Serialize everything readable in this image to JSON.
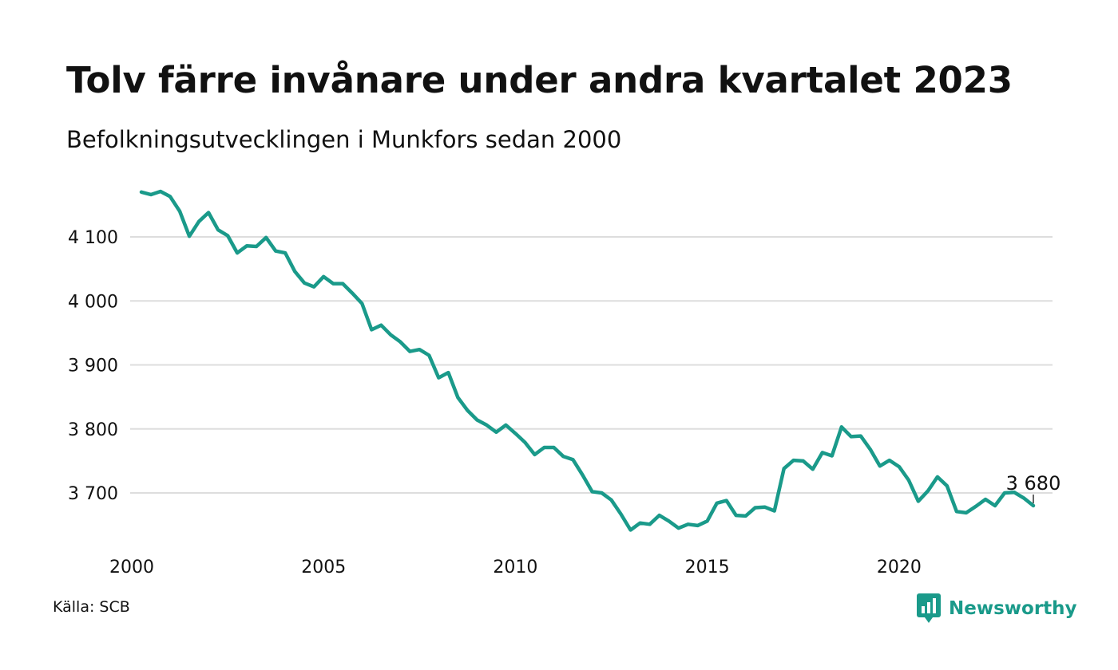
{
  "title": "Tolv färre invånare under andra kvartalet 2023",
  "subtitle": "Befolkningsutvecklingen i Munkfors sedan 2000",
  "source": "Källa: SCB",
  "brand": {
    "name": "Newsworthy",
    "icon": "newsworthy-logo-icon",
    "color": "#1a9a8a"
  },
  "colors": {
    "line": "#1a9a8a",
    "grid": "#dddddd",
    "text": "#111111"
  },
  "chart_data": {
    "type": "line",
    "title": "Tolv färre invånare under andra kvartalet 2023",
    "subtitle": "Befolkningsutvecklingen i Munkfors sedan 2000",
    "xlabel": "",
    "ylabel": "",
    "x_ticks": [
      2000,
      2005,
      2010,
      2015,
      2020
    ],
    "x_tick_labels": [
      "2000",
      "2005",
      "2010",
      "2015",
      "2020"
    ],
    "y_ticks": [
      3700,
      3800,
      3900,
      4000,
      4100
    ],
    "y_tick_labels": [
      "3 700",
      "3 800",
      "3 900",
      "4 000",
      "4 100"
    ],
    "xlim": [
      2000,
      2023.25
    ],
    "ylim": [
      3640,
      4175
    ],
    "grid": true,
    "legend": "none",
    "last_value_label": "3 680",
    "x": [
      2000.25,
      2000.5,
      2000.75,
      2001,
      2001.25,
      2001.5,
      2001.75,
      2002,
      2002.25,
      2002.5,
      2002.75,
      2003,
      2003.25,
      2003.5,
      2003.75,
      2004,
      2004.25,
      2004.5,
      2004.75,
      2005,
      2005.25,
      2005.5,
      2005.75,
      2006,
      2006.25,
      2006.5,
      2006.75,
      2007,
      2007.25,
      2007.5,
      2007.75,
      2008,
      2008.25,
      2008.5,
      2008.75,
      2009,
      2009.25,
      2009.5,
      2009.75,
      2010,
      2010.25,
      2010.5,
      2010.75,
      2011,
      2011.25,
      2011.5,
      2011.75,
      2012,
      2012.25,
      2012.5,
      2012.75,
      2013,
      2013.25,
      2013.5,
      2013.75,
      2014,
      2014.25,
      2014.5,
      2014.75,
      2015,
      2015.25,
      2015.5,
      2015.75,
      2016,
      2016.25,
      2016.5,
      2016.75,
      2017,
      2017.25,
      2017.5,
      2017.75,
      2018,
      2018.25,
      2018.5,
      2018.75,
      2019,
      2019.25,
      2019.5,
      2019.75,
      2020,
      2020.25,
      2020.5,
      2020.75,
      2021,
      2021.25,
      2021.5,
      2021.75,
      2022,
      2022.25,
      2022.5,
      2022.75,
      2023,
      2023.25,
      2023.5
    ],
    "series": [
      {
        "values": [
          4170,
          4166,
          4171,
          4163,
          4140,
          4101,
          4124,
          4138,
          4111,
          4102,
          4075,
          4086,
          4085,
          4099,
          4078,
          4075,
          4046,
          4028,
          4022,
          4038,
          4027,
          4027,
          4012,
          3996,
          3955,
          3962,
          3947,
          3936,
          3921,
          3924,
          3915,
          3880,
          3888,
          3849,
          3829,
          3814,
          3806,
          3795,
          3806,
          3793,
          3779,
          3760,
          3771,
          3771,
          3757,
          3752,
          3728,
          3702,
          3700,
          3689,
          3667,
          3642,
          3653,
          3651,
          3665,
          3656,
          3645,
          3651,
          3649,
          3656,
          3684,
          3688,
          3665,
          3664,
          3677,
          3678,
          3672,
          3738,
          3751,
          3750,
          3737,
          3763,
          3758,
          3803,
          3788,
          3789,
          3768,
          3742,
          3751,
          3741,
          3720,
          3687,
          3703,
          3725,
          3711,
          3671,
          3669,
          3679,
          3690,
          3680,
          3700,
          3701,
          3692,
          3680
        ]
      }
    ]
  }
}
